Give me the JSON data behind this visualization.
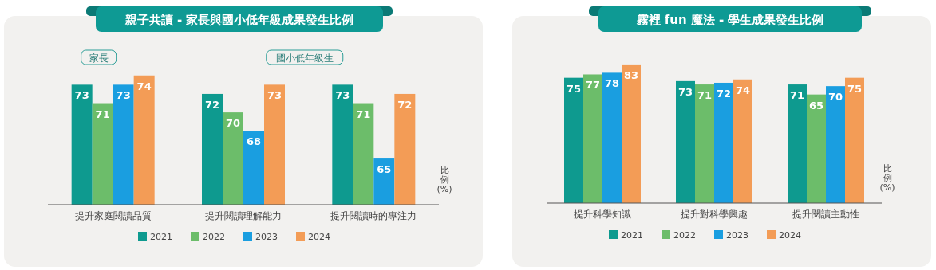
{
  "chart_data": [
    {
      "type": "bar",
      "title": "親子共讀 - 家長與國小低年級成果發生比例",
      "ylabel": "比例(%)",
      "annotations": [
        "家長",
        "國小低年級生"
      ],
      "categories": [
        "提升家庭閱讀品質",
        "提升閱讀理解能力",
        "提升閱讀時的專注力"
      ],
      "series": [
        {
          "name": "2021",
          "color": "#0e9a8f",
          "values": [
            73,
            72,
            73
          ]
        },
        {
          "name": "2022",
          "color": "#6cbd6a",
          "values": [
            71,
            70,
            71
          ]
        },
        {
          "name": "2023",
          "color": "#1a9ee0",
          "values": [
            73,
            68,
            65
          ]
        },
        {
          "name": "2024",
          "color": "#f39c56",
          "values": [
            74,
            73,
            72
          ]
        }
      ],
      "ylim": [
        60,
        77
      ],
      "data_labels": true,
      "legend": "bottom"
    },
    {
      "type": "bar",
      "title": "霧裡 fun 魔法 - 學生成果發生比例",
      "ylabel": "比例(%)",
      "categories": [
        "提升科學知識",
        "提升對科學興趣",
        "提升閱讀主動性"
      ],
      "series": [
        {
          "name": "2021",
          "color": "#0e9a8f",
          "values": [
            75,
            73,
            71
          ]
        },
        {
          "name": "2022",
          "color": "#6cbd6a",
          "values": [
            77,
            71,
            65
          ]
        },
        {
          "name": "2023",
          "color": "#1a9ee0",
          "values": [
            78,
            72,
            70
          ]
        },
        {
          "name": "2024",
          "color": "#f39c56",
          "values": [
            83,
            74,
            75
          ]
        }
      ],
      "data_labels": true,
      "legend": "bottom"
    }
  ]
}
